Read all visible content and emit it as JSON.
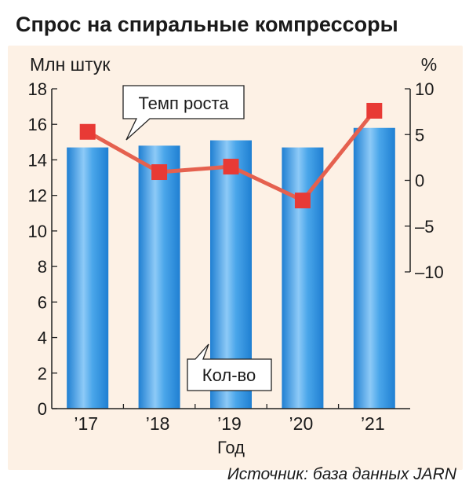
{
  "title": "Спрос на спиральные компрессоры",
  "source": "Источник: база данных JARN",
  "chart_data": {
    "type": "bar",
    "categories": [
      "’17",
      "’18",
      "’19",
      "’20",
      "’21"
    ],
    "xlabel": "Год",
    "ylabel_left": "Млн штук",
    "ylabel_right": "%",
    "ylim_left": [
      0,
      18
    ],
    "yticks_left": [
      0,
      2,
      4,
      6,
      8,
      10,
      12,
      14,
      16,
      18
    ],
    "ylim_right": [
      -10,
      10
    ],
    "yticks_right": [
      10,
      5,
      0,
      -5,
      -10
    ],
    "yticks_right_labels": [
      "10",
      "5",
      "0",
      "–5",
      "–10"
    ],
    "series": [
      {
        "name": "Кол-во",
        "type": "bar",
        "axis": "left",
        "values": [
          14.7,
          14.8,
          15.1,
          14.7,
          15.8
        ]
      },
      {
        "name": "Темп роста",
        "type": "line",
        "axis": "right",
        "values": [
          5.3,
          0.9,
          1.5,
          -2.2,
          7.6
        ]
      }
    ],
    "grid": false,
    "colors": {
      "bar": "#2f8fdd",
      "bar_light": "#8dcaf7",
      "line": "#e5614f",
      "marker": "#e83a35",
      "background": "#fdf1e5"
    }
  }
}
